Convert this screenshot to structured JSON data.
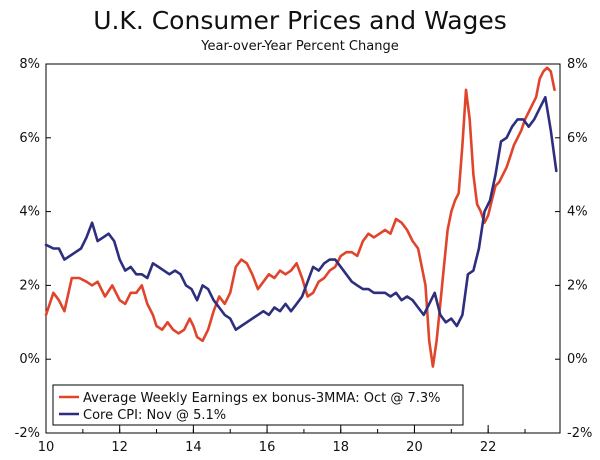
{
  "chart_data": {
    "type": "line",
    "title": "U.K. Consumer Prices and Wages",
    "subtitle": "Year-over-Year Percent Change",
    "xlim": [
      2010,
      2023.95
    ],
    "ylim": [
      -2,
      8
    ],
    "y_ticks": [
      8,
      6,
      4,
      2,
      0,
      -2
    ],
    "y_tick_labels": [
      "8%",
      "6%",
      "4%",
      "2%",
      "0%",
      "-2%"
    ],
    "x_ticks": [
      2010,
      2012,
      2014,
      2016,
      2018,
      2020,
      2022
    ],
    "x_tick_labels": [
      "10",
      "12",
      "14",
      "16",
      "18",
      "20",
      "22"
    ],
    "y_axis_right": true,
    "grid": false,
    "legend_placement": "bottom-left",
    "series": [
      {
        "name": "Average Weekly Earnings ex bonus-3MMA: Oct @ 7.3%",
        "color": "#e0452c",
        "x": [
          2010.0,
          2010.2,
          2010.35,
          2010.5,
          2010.7,
          2010.9,
          2011.1,
          2011.25,
          2011.4,
          2011.6,
          2011.8,
          2012.0,
          2012.15,
          2012.3,
          2012.45,
          2012.6,
          2012.75,
          2012.9,
          2013.0,
          2013.15,
          2013.3,
          2013.45,
          2013.6,
          2013.75,
          2013.9,
          2014.0,
          2014.1,
          2014.25,
          2014.4,
          2014.55,
          2014.7,
          2014.85,
          2015.0,
          2015.15,
          2015.3,
          2015.45,
          2015.6,
          2015.75,
          2015.9,
          2016.05,
          2016.2,
          2016.35,
          2016.5,
          2016.65,
          2016.8,
          2016.95,
          2017.1,
          2017.25,
          2017.4,
          2017.55,
          2017.7,
          2017.85,
          2018.0,
          2018.15,
          2018.3,
          2018.45,
          2018.6,
          2018.75,
          2018.9,
          2019.05,
          2019.2,
          2019.35,
          2019.5,
          2019.65,
          2019.8,
          2019.95,
          2020.1,
          2020.2,
          2020.3,
          2020.4,
          2020.5,
          2020.6,
          2020.7,
          2020.8,
          2020.9,
          2021.0,
          2021.1,
          2021.2,
          2021.3,
          2021.4,
          2021.5,
          2021.6,
          2021.7,
          2021.8,
          2021.9,
          2022.0,
          2022.1,
          2022.2,
          2022.3,
          2022.4,
          2022.5,
          2022.6,
          2022.7,
          2022.8,
          2022.9,
          2023.0,
          2023.1,
          2023.2,
          2023.3,
          2023.4,
          2023.5,
          2023.6,
          2023.7,
          2023.8
        ],
        "values": [
          1.2,
          1.8,
          1.6,
          1.3,
          2.2,
          2.2,
          2.1,
          2.0,
          2.1,
          1.7,
          2.0,
          1.6,
          1.5,
          1.8,
          1.8,
          2.0,
          1.5,
          1.2,
          0.9,
          0.8,
          1.0,
          0.8,
          0.7,
          0.8,
          1.1,
          0.9,
          0.6,
          0.5,
          0.8,
          1.3,
          1.7,
          1.5,
          1.8,
          2.5,
          2.7,
          2.6,
          2.3,
          1.9,
          2.1,
          2.3,
          2.2,
          2.4,
          2.3,
          2.4,
          2.6,
          2.2,
          1.7,
          1.8,
          2.1,
          2.2,
          2.4,
          2.5,
          2.8,
          2.9,
          2.9,
          2.8,
          3.2,
          3.4,
          3.3,
          3.4,
          3.5,
          3.4,
          3.8,
          3.7,
          3.5,
          3.2,
          3.0,
          2.5,
          2.0,
          0.5,
          -0.2,
          0.5,
          1.5,
          2.5,
          3.5,
          4.0,
          4.3,
          4.5,
          5.8,
          7.3,
          6.5,
          5.0,
          4.2,
          4.0,
          3.7,
          3.9,
          4.3,
          4.7,
          4.8,
          5.0,
          5.2,
          5.5,
          5.8,
          6.0,
          6.2,
          6.5,
          6.7,
          6.9,
          7.1,
          7.6,
          7.8,
          7.9,
          7.8,
          7.3
        ]
      },
      {
        "name": "Core CPI: Nov @ 5.1%",
        "color": "#2e2e7e",
        "x": [
          2010.0,
          2010.2,
          2010.35,
          2010.5,
          2010.65,
          2010.8,
          2010.95,
          2011.1,
          2011.25,
          2011.4,
          2011.55,
          2011.7,
          2011.85,
          2012.0,
          2012.15,
          2012.3,
          2012.45,
          2012.6,
          2012.75,
          2012.9,
          2013.05,
          2013.2,
          2013.35,
          2013.5,
          2013.65,
          2013.8,
          2013.95,
          2014.1,
          2014.25,
          2014.4,
          2014.55,
          2014.7,
          2014.85,
          2015.0,
          2015.15,
          2015.3,
          2015.45,
          2015.6,
          2015.75,
          2015.9,
          2016.05,
          2016.2,
          2016.35,
          2016.5,
          2016.65,
          2016.8,
          2016.95,
          2017.1,
          2017.25,
          2017.4,
          2017.55,
          2017.7,
          2017.85,
          2018.0,
          2018.15,
          2018.3,
          2018.45,
          2018.6,
          2018.75,
          2018.9,
          2019.05,
          2019.2,
          2019.35,
          2019.5,
          2019.65,
          2019.8,
          2019.95,
          2020.1,
          2020.25,
          2020.4,
          2020.55,
          2020.7,
          2020.85,
          2021.0,
          2021.15,
          2021.3,
          2021.45,
          2021.6,
          2021.75,
          2021.9,
          2022.05,
          2022.2,
          2022.35,
          2022.5,
          2022.65,
          2022.8,
          2022.95,
          2023.1,
          2023.25,
          2023.4,
          2023.55,
          2023.7,
          2023.85
        ],
        "values": [
          3.1,
          3.0,
          3.0,
          2.7,
          2.8,
          2.9,
          3.0,
          3.3,
          3.7,
          3.2,
          3.3,
          3.4,
          3.2,
          2.7,
          2.4,
          2.5,
          2.3,
          2.3,
          2.2,
          2.6,
          2.5,
          2.4,
          2.3,
          2.4,
          2.3,
          2.0,
          1.9,
          1.6,
          2.0,
          1.9,
          1.6,
          1.4,
          1.2,
          1.1,
          0.8,
          0.9,
          1.0,
          1.1,
          1.2,
          1.3,
          1.2,
          1.4,
          1.3,
          1.5,
          1.3,
          1.5,
          1.7,
          2.1,
          2.5,
          2.4,
          2.6,
          2.7,
          2.7,
          2.5,
          2.3,
          2.1,
          2.0,
          1.9,
          1.9,
          1.8,
          1.8,
          1.8,
          1.7,
          1.8,
          1.6,
          1.7,
          1.6,
          1.4,
          1.2,
          1.5,
          1.8,
          1.2,
          1.0,
          1.1,
          0.9,
          1.2,
          2.3,
          2.4,
          3.0,
          4.0,
          4.3,
          5.0,
          5.9,
          6.0,
          6.3,
          6.5,
          6.5,
          6.3,
          6.5,
          6.8,
          7.1,
          6.2,
          5.1
        ]
      }
    ]
  }
}
